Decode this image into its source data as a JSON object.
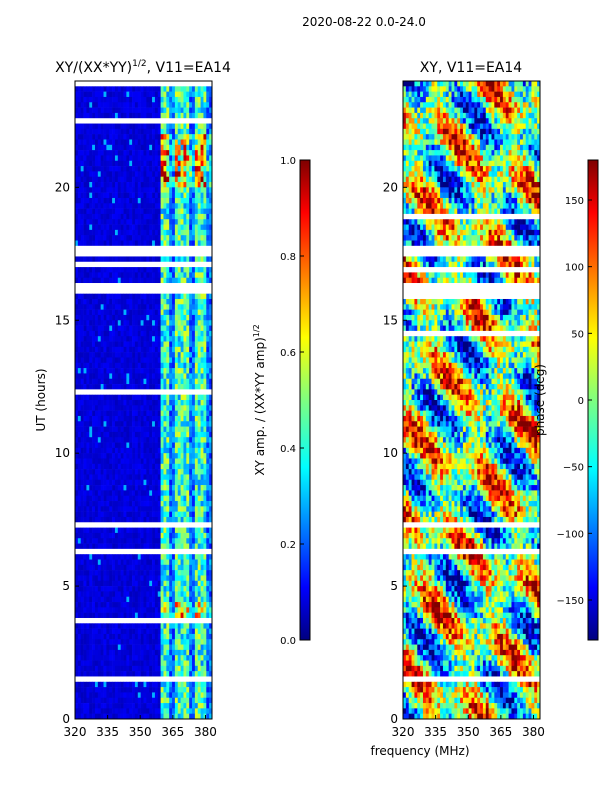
{
  "figure": {
    "suptitle": "2020-08-22 0.0-24.0",
    "xlabel_shared": "frequency (MHz)"
  },
  "chart_data": [
    {
      "type": "heatmap",
      "title": "XY/(XX*YY)$^{1/2}$, V11=EA14",
      "title_main": "XY/(XX*YY)",
      "title_sup": "1/2",
      "title_tail": ", V11=EA14",
      "xlabel": "frequency (MHz)",
      "ylabel": "UT (hours)",
      "xlim": [
        320,
        383
      ],
      "ylim": [
        0,
        24
      ],
      "xticks": [
        320,
        335,
        350,
        365,
        380
      ],
      "yticks": [
        0,
        5,
        10,
        15,
        20
      ],
      "colorbar": {
        "label": "XY amp. / (XX*YY amp)$^{1/2}$",
        "label_main": "XY amp. / (XX*YY amp)",
        "label_sup": "1/2",
        "range": [
          0.0,
          1.0
        ],
        "ticks": [
          "0.0",
          "0.2",
          "0.4",
          "0.6",
          "0.8",
          "1.0"
        ],
        "tick_values": [
          0.0,
          0.2,
          0.4,
          0.6,
          0.8,
          1.0
        ]
      },
      "colormap": "jet",
      "flagged_gaps_ut": [
        1.5,
        7.3,
        17.6,
        16.2
      ],
      "bright_band_mhz": [
        360,
        383
      ]
    },
    {
      "type": "heatmap",
      "title": "XY, V11=EA14",
      "xlabel": "frequency (MHz)",
      "ylabel": "",
      "xlim": [
        320,
        383
      ],
      "ylim": [
        0,
        24
      ],
      "xticks": [
        320,
        335,
        350,
        365,
        380
      ],
      "yticks": [
        0,
        5,
        10,
        15,
        20
      ],
      "colorbar": {
        "label": "phase (deg)",
        "range": [
          -180,
          180
        ],
        "ticks": [
          "−150",
          "−100",
          "−50",
          "0",
          "50",
          "100",
          "150"
        ],
        "tick_values": [
          -150,
          -100,
          -50,
          0,
          50,
          100,
          150
        ]
      },
      "colormap": "jet",
      "flagged_gaps_ut": [
        1.5,
        7.3,
        17.6,
        16.2
      ]
    }
  ]
}
